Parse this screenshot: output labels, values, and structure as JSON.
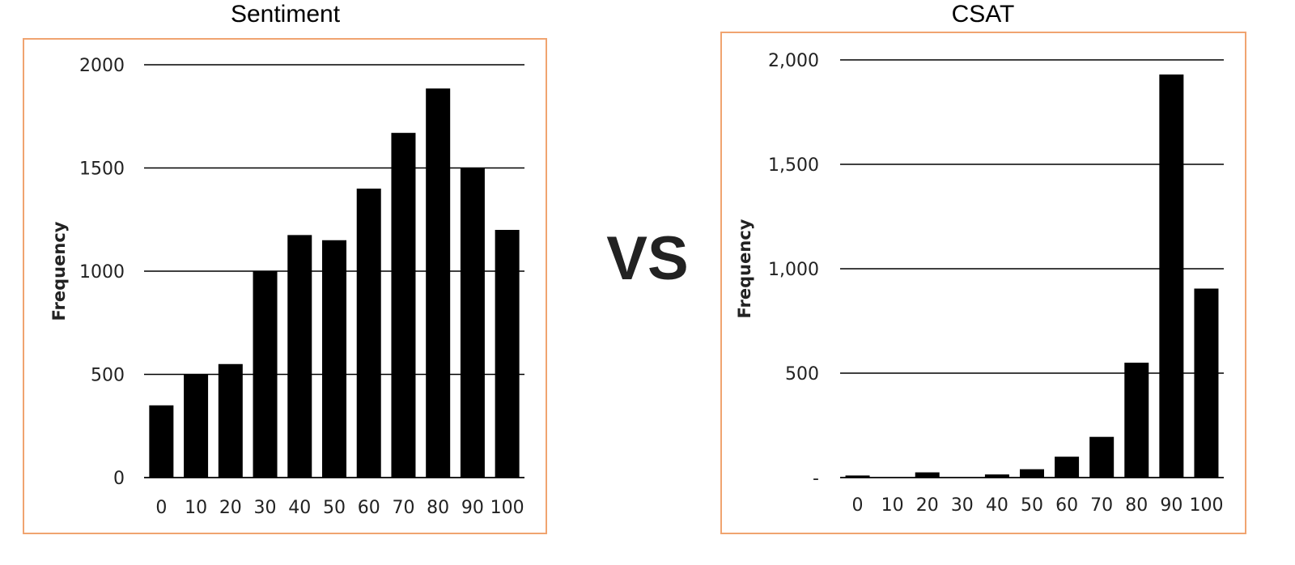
{
  "vs_text": "VS",
  "frame_color": "#f0a470",
  "bar_color": "#000000",
  "chart_data": [
    {
      "type": "bar",
      "title": "Sentiment",
      "xlabel": "",
      "ylabel": "Frequency",
      "ylim": [
        0,
        2000
      ],
      "yticks": [
        0,
        500,
        1000,
        1500,
        2000
      ],
      "ytick_labels": [
        "0",
        "500",
        "1000",
        "1500",
        "2000"
      ],
      "categories": [
        "0",
        "10",
        "20",
        "30",
        "40",
        "50",
        "60",
        "70",
        "80",
        "90",
        "100"
      ],
      "values": [
        350,
        500,
        550,
        1000,
        1175,
        1150,
        1400,
        1670,
        1885,
        1500,
        1200
      ],
      "grid": "horizontal"
    },
    {
      "type": "bar",
      "title": "CSAT",
      "xlabel": "",
      "ylabel": "Frequency",
      "ylim": [
        0,
        2000
      ],
      "yticks": [
        0,
        500,
        1000,
        1500,
        2000
      ],
      "ytick_labels": [
        "-",
        "500",
        "1,000",
        "1,500",
        "2,000"
      ],
      "categories": [
        "0",
        "10",
        "20",
        "30",
        "40",
        "50",
        "60",
        "70",
        "80",
        "90",
        "100"
      ],
      "values": [
        10,
        0,
        25,
        0,
        15,
        40,
        100,
        195,
        550,
        1930,
        905
      ],
      "grid": "horizontal"
    }
  ]
}
